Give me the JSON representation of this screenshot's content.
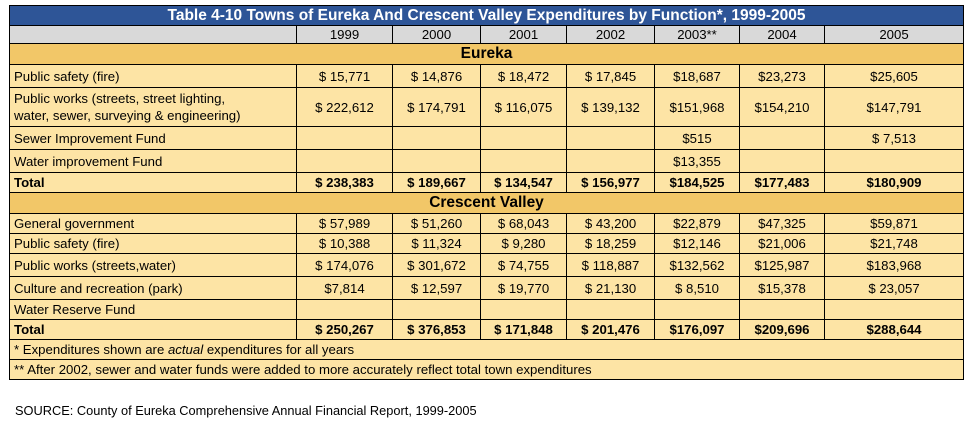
{
  "title": "Table 4-10 Towns of Eureka And Crescent Valley Expenditures by Function*, 1999-2005",
  "years": [
    "1999",
    "2000",
    "2001",
    "2002",
    "2003**",
    "2004",
    "2005"
  ],
  "sections": [
    {
      "name": "Eureka",
      "rows": [
        {
          "label": "Public safety (fire)",
          "values": [
            "$ 15,771",
            "$ 14,876",
            "$ 18,472",
            "$ 17,845",
            "$18,687",
            "$23,273",
            "$25,605"
          ]
        },
        {
          "label": "Public works (streets, street lighting, water, sewer, surveying & engineering)",
          "label_line1": "Public works (streets, street lighting,",
          "label_line2": "water, sewer, surveying & engineering)",
          "values": [
            "$ 222,612",
            "$ 174,791",
            "$ 116,075",
            "$ 139,132",
            "$151,968",
            "$154,210",
            "$147,791"
          ]
        },
        {
          "label": "Sewer Improvement Fund",
          "values": [
            "",
            "",
            "",
            "",
            "$515",
            "",
            "$ 7,513"
          ]
        },
        {
          "label": "Water improvement Fund",
          "values": [
            "",
            "",
            "",
            "",
            "$13,355",
            "",
            ""
          ]
        },
        {
          "label": "Total",
          "values": [
            "$ 238,383",
            "$ 189,667",
            "$ 134,547",
            "$ 156,977",
            "$184,525",
            "$177,483",
            "$180,909"
          ]
        }
      ]
    },
    {
      "name": "Crescent Valley",
      "rows": [
        {
          "label": "General government",
          "values": [
            "$ 57,989",
            "$ 51,260",
            "$ 68,043",
            "$ 43,200",
            "$22,879",
            "$47,325",
            "$59,871"
          ]
        },
        {
          "label": "Public safety (fire)",
          "values": [
            "$ 10,388",
            "$ 11,324",
            "$ 9,280",
            "$ 18,259",
            "$12,146",
            "$21,006",
            "$21,748"
          ]
        },
        {
          "label": "Public works (streets,water)",
          "values": [
            "$ 174,076",
            "$ 301,672",
            "$ 74,755",
            "$ 118,887",
            "$132,562",
            "$125,987",
            "$183,968"
          ]
        },
        {
          "label": "Culture and recreation (park)",
          "values": [
            "$7,814",
            "$ 12,597",
            "$ 19,770",
            "$ 21,130",
            "$ 8,510",
            "$15,378",
            "$ 23,057"
          ]
        },
        {
          "label": "Water Reserve Fund",
          "values": [
            "",
            "",
            "",
            "",
            "",
            "",
            ""
          ]
        },
        {
          "label": "Total",
          "values": [
            "$ 250,267",
            "$ 376,853",
            "$ 171,848",
            "$ 201,476",
            "$176,097",
            "$209,696",
            "$288,644"
          ]
        }
      ]
    }
  ],
  "footnotes": {
    "note1_prefix": "* Expenditures shown are ",
    "note1_emph": "actual",
    "note1_suffix": " expenditures for all years",
    "note2": "** After 2002, sewer and water funds were added to more accurately reflect total town expenditures"
  },
  "source": "SOURCE: County of Eureka Comprehensive Annual Financial Report, 1999-2005",
  "colors": {
    "title_bg": "#2e5597",
    "header_bg": "#d9d9d9",
    "section_bg": "#f2c768",
    "row_bg": "#fde4a5"
  }
}
